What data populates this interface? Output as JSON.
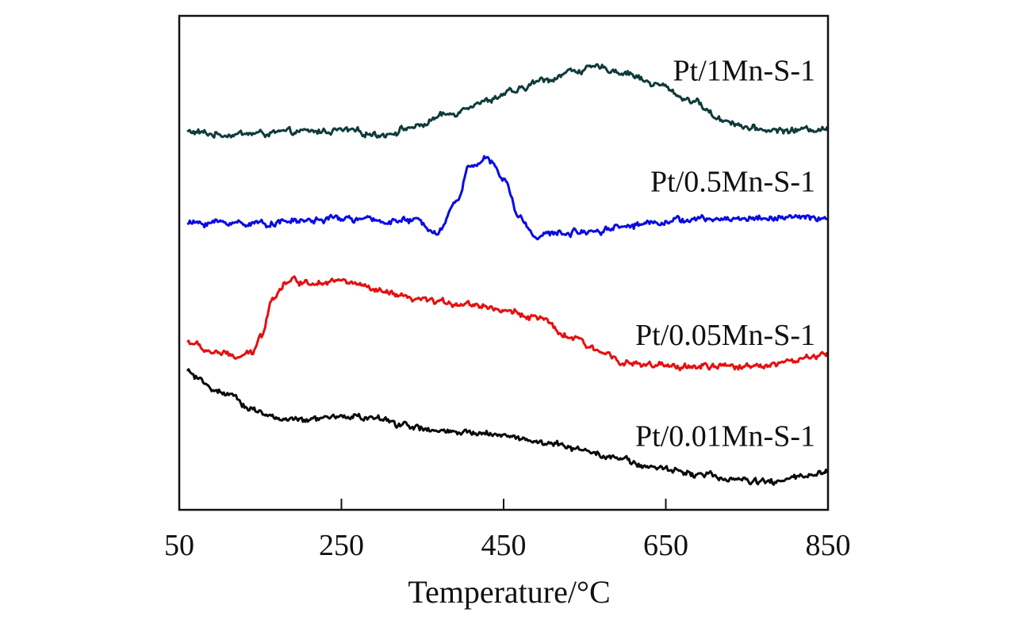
{
  "chart_data": {
    "type": "line",
    "title": "",
    "xlabel": "Temperature/°C",
    "ylabel": "",
    "xlim": [
      50,
      850
    ],
    "ylim": [
      0,
      10
    ],
    "xticks": [
      50,
      250,
      450,
      650,
      850
    ],
    "xtick_labels": [
      "50",
      "250",
      "450",
      "650",
      "850"
    ],
    "yticks_shown": false,
    "grid": false,
    "legend": "inline labels at right",
    "series": [
      {
        "name": "Pt/1Mn-S-1",
        "label": "Pt/1Mn-S-1",
        "color": "#0f3b3a",
        "x": [
          60,
          100,
          150,
          200,
          250,
          300,
          340,
          380,
          420,
          460,
          500,
          540,
          570,
          600,
          640,
          680,
          720,
          760,
          800,
          850
        ],
        "y": [
          7.65,
          7.6,
          7.62,
          7.65,
          7.68,
          7.6,
          7.75,
          8.0,
          8.25,
          8.45,
          8.7,
          8.9,
          8.95,
          8.85,
          8.6,
          8.3,
          7.9,
          7.7,
          7.68,
          7.72
        ]
      },
      {
        "name": "Pt/0.5Mn-S-1",
        "label": "Pt/0.5Mn-S-1",
        "color": "#0a0ae6",
        "x": [
          60,
          100,
          150,
          200,
          250,
          300,
          340,
          370,
          390,
          410,
          430,
          450,
          470,
          490,
          520,
          560,
          600,
          650,
          700,
          750,
          800,
          850
        ],
        "y": [
          5.8,
          5.82,
          5.8,
          5.85,
          5.9,
          5.85,
          5.85,
          5.65,
          6.2,
          7.0,
          7.1,
          6.7,
          5.9,
          5.55,
          5.6,
          5.65,
          5.75,
          5.85,
          5.88,
          5.9,
          5.92,
          5.9
        ]
      },
      {
        "name": "Pt/0.05Mn-S-1",
        "label": "Pt/0.05Mn-S-1",
        "color": "#e60f0f",
        "x": [
          60,
          90,
          120,
          140,
          150,
          165,
          185,
          210,
          240,
          260,
          300,
          340,
          380,
          420,
          460,
          490,
          530,
          570,
          610,
          650,
          700,
          740,
          780,
          820,
          850
        ],
        "y": [
          3.4,
          3.2,
          3.1,
          3.15,
          3.5,
          4.3,
          4.65,
          4.6,
          4.65,
          4.6,
          4.4,
          4.25,
          4.2,
          4.15,
          4.0,
          3.9,
          3.5,
          3.2,
          2.95,
          2.9,
          2.9,
          2.9,
          2.95,
          3.05,
          3.15
        ]
      },
      {
        "name": "Pt/0.01Mn-S-1",
        "label": "Pt/0.01Mn-S-1",
        "color": "#0a0a0a",
        "x": [
          60,
          80,
          110,
          140,
          170,
          200,
          230,
          260,
          290,
          320,
          360,
          400,
          440,
          470,
          500,
          540,
          580,
          620,
          660,
          700,
          740,
          780,
          810,
          850
        ],
        "y": [
          2.8,
          2.55,
          2.3,
          2.05,
          1.85,
          1.8,
          1.85,
          1.9,
          1.85,
          1.75,
          1.6,
          1.55,
          1.55,
          1.45,
          1.35,
          1.25,
          1.1,
          0.9,
          0.8,
          0.7,
          0.6,
          0.55,
          0.65,
          0.75
        ]
      }
    ]
  }
}
